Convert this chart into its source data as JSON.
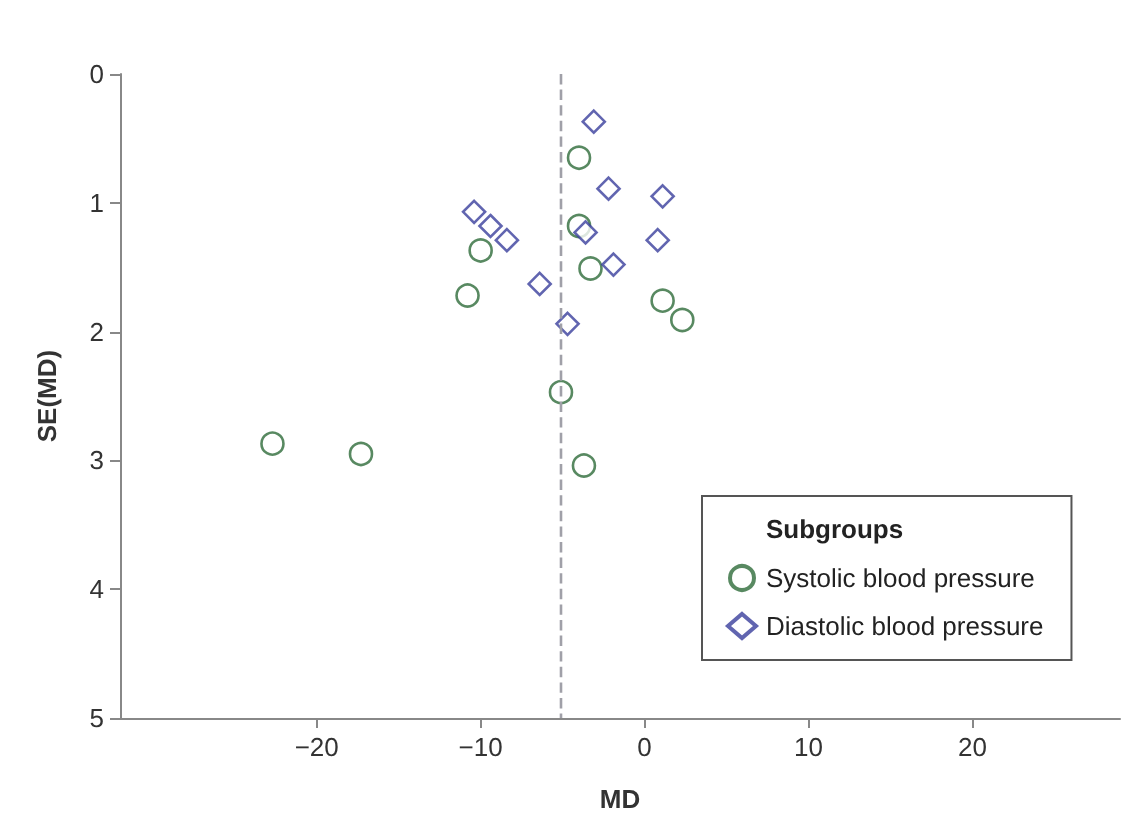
{
  "chart_data": {
    "type": "scatter",
    "xlabel": "MD",
    "ylabel": "SE(MD)",
    "legend_title": "Subgroups",
    "xlim": [
      -32,
      29
    ],
    "xticks": [
      -20,
      -10,
      0,
      10,
      20
    ],
    "ylim": [
      5,
      0
    ],
    "yticks": [
      0,
      1,
      2,
      3,
      4,
      5
    ],
    "grid": false,
    "legend": "bottom right",
    "ref_lines": [
      {
        "axis": "x",
        "value": -5.1,
        "color": "#a0a0a8",
        "line_style": "dashed"
      }
    ],
    "series": [
      {
        "name": "Systolic blood pressure",
        "color": "#2e6b3a",
        "marker": "circle",
        "x": [
          -4.0,
          -4.0,
          -10.0,
          -3.3,
          -10.8,
          1.1,
          2.3,
          -5.1,
          -22.7,
          -17.3,
          -3.7
        ],
        "values": [
          0.65,
          1.18,
          1.37,
          1.51,
          1.72,
          1.76,
          1.91,
          2.47,
          2.87,
          2.95,
          3.04
        ]
      },
      {
        "name": "Diastolic blood pressure",
        "color": "#3a3f9c",
        "marker": "diamond",
        "x": [
          -3.1,
          -2.2,
          1.1,
          -10.4,
          -9.4,
          -3.6,
          -8.4,
          0.8,
          -1.9,
          -6.4,
          -4.7
        ],
        "values": [
          0.37,
          0.89,
          0.95,
          1.07,
          1.18,
          1.23,
          1.29,
          1.29,
          1.48,
          1.63,
          1.94
        ]
      }
    ]
  }
}
